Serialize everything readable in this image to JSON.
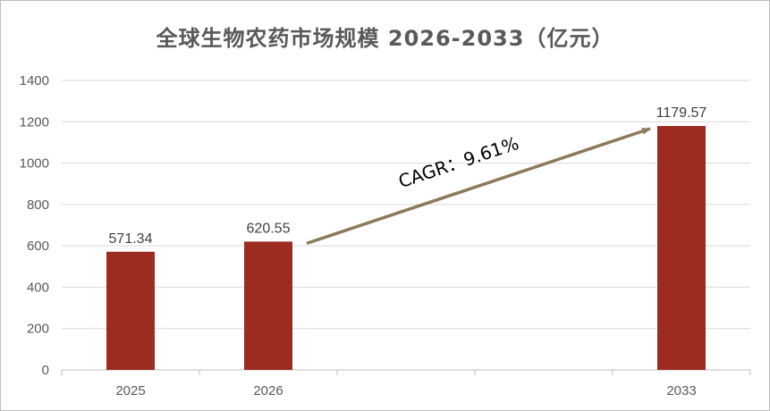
{
  "chart_data": {
    "type": "bar",
    "title": "全球生物农药市场规模 2026-2033（亿元）",
    "categories": [
      "2025",
      "2026",
      "",
      "",
      "2033"
    ],
    "values": [
      571.34,
      620.55,
      null,
      null,
      1179.57
    ],
    "data_labels": [
      "571.34",
      "620.55",
      "",
      "",
      "1179.57"
    ],
    "ylim": [
      0,
      1400
    ],
    "yticks": [
      0,
      200,
      400,
      600,
      800,
      1000,
      1200,
      1400
    ],
    "grid": true,
    "legend": "none",
    "bar_color": "#9b2c1f",
    "annotation": {
      "text": "CAGR：9.61%",
      "from_category": "2026",
      "to_category": "2033",
      "arrow_color": "#8c7a5b"
    }
  }
}
